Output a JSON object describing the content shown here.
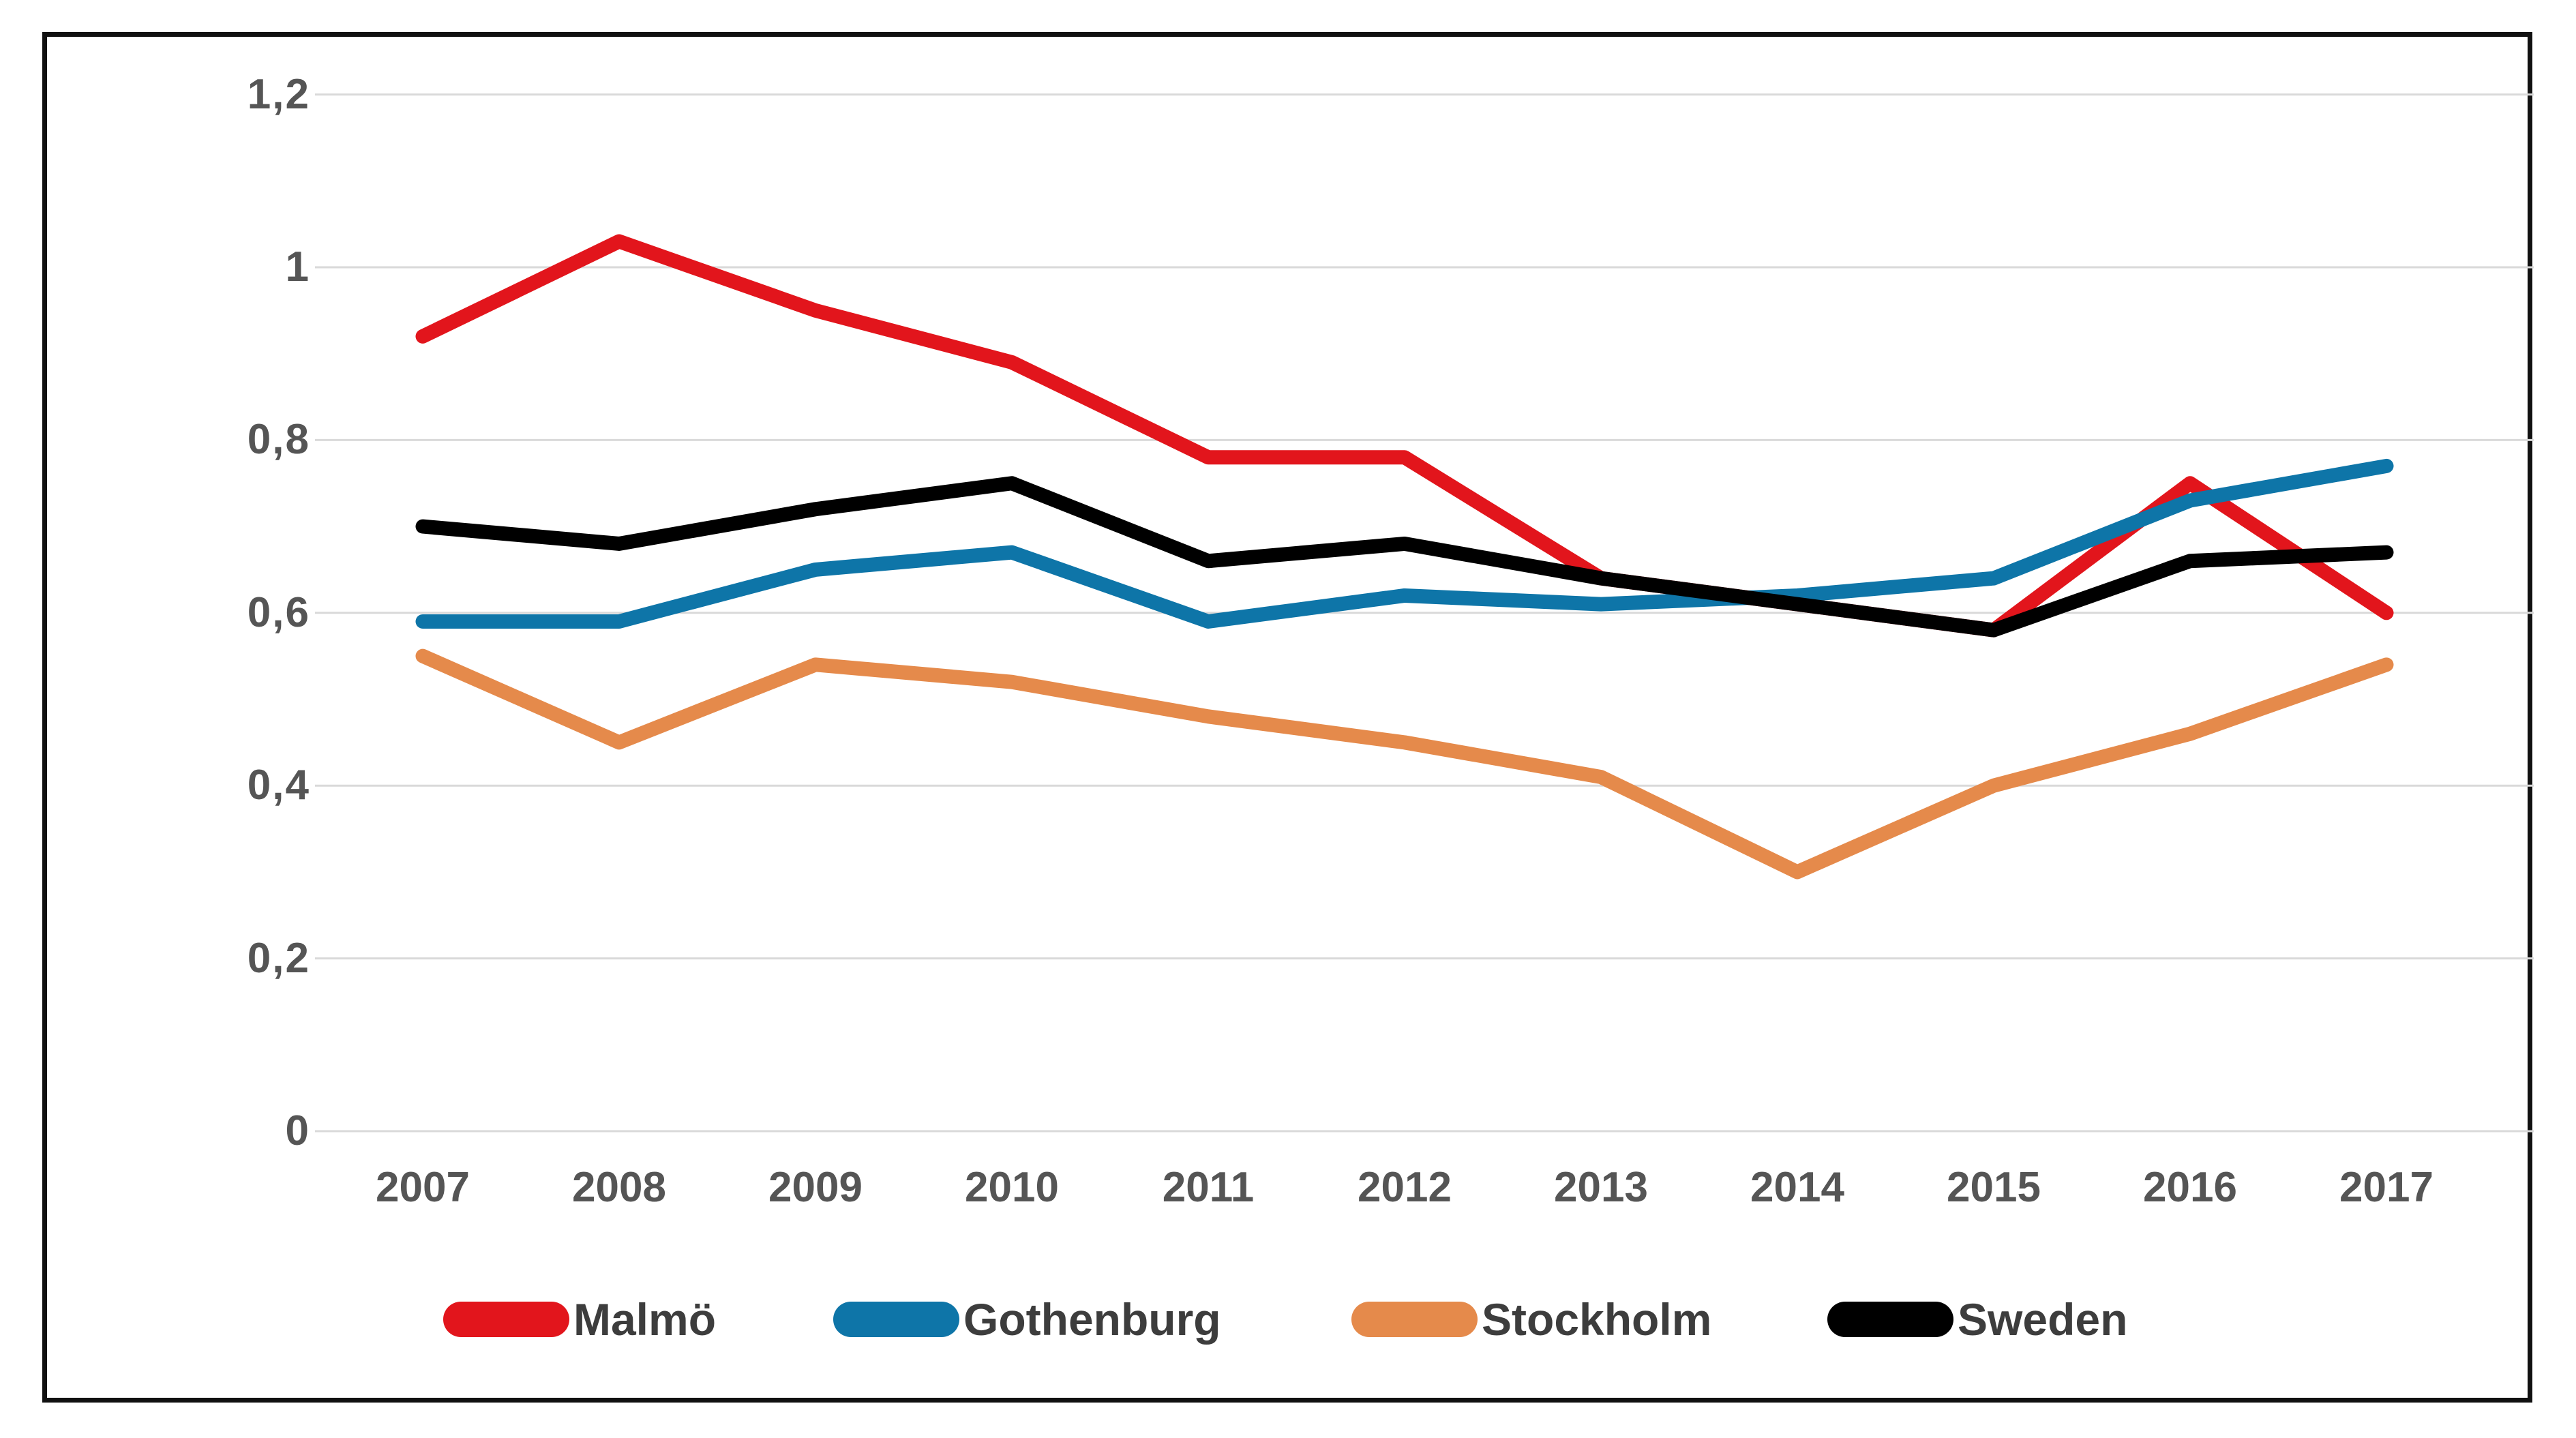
{
  "chart_data": {
    "type": "line",
    "title": "",
    "xlabel": "",
    "ylabel": "",
    "grid": true,
    "legend_position": "bottom",
    "decimal_separator": ",",
    "ylim": [
      0,
      1.2
    ],
    "categories": [
      "2007",
      "2008",
      "2009",
      "2010",
      "2011",
      "2012",
      "2013",
      "2014",
      "2015",
      "2016",
      "2017"
    ],
    "y_tick_labels": [
      "1,2",
      "1",
      "0,8",
      "0,6",
      "0,4",
      "0,2",
      "0"
    ],
    "y_tick_values": [
      1.2,
      1.0,
      0.8,
      0.6,
      0.4,
      0.2,
      0
    ],
    "series": [
      {
        "name": "Malmö",
        "color": "#e2151c",
        "values": [
          0.92,
          1.03,
          0.95,
          0.89,
          0.78,
          0.78,
          0.64,
          0.61,
          0.58,
          0.75,
          0.6
        ]
      },
      {
        "name": "Gothenburg",
        "color": "#0e75a8",
        "values": [
          0.59,
          0.59,
          0.65,
          0.67,
          0.59,
          0.62,
          0.61,
          0.62,
          0.64,
          0.73,
          0.77
        ]
      },
      {
        "name": "Stockholm",
        "color": "#e58a4b",
        "values": [
          0.55,
          0.45,
          0.54,
          0.52,
          0.48,
          0.45,
          0.41,
          0.3,
          0.4,
          0.46,
          0.54
        ]
      },
      {
        "name": "Sweden",
        "color": "#000000",
        "values": [
          0.7,
          0.68,
          0.72,
          0.75,
          0.66,
          0.68,
          0.64,
          0.61,
          0.58,
          0.66,
          0.67
        ]
      }
    ]
  }
}
